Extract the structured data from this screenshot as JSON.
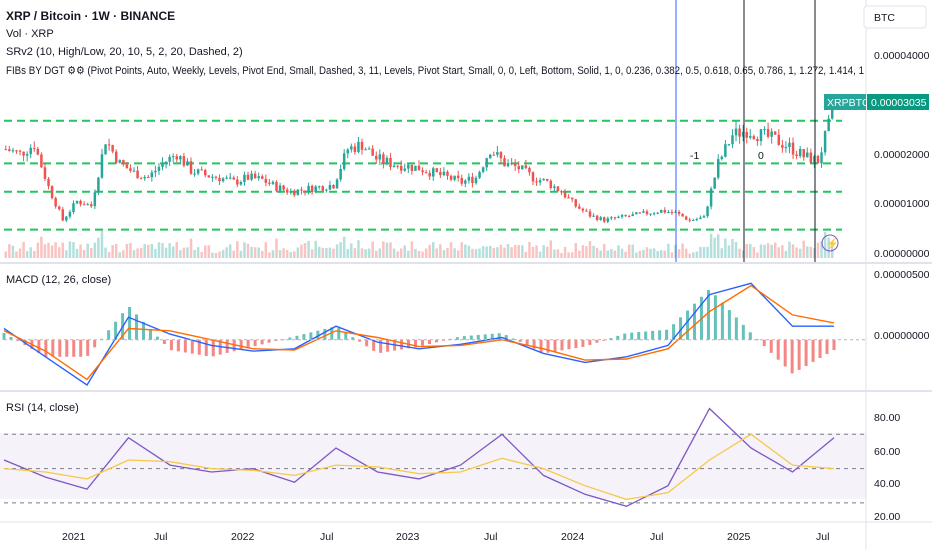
{
  "header": {
    "symbol_line": "XRP / Bitcoin · 1W · BINANCE",
    "indicators": [
      "Vol · XRP",
      "SRv2 (10, High/Low, 20, 10, 5, 2, 20, Dashed, 2)",
      "FIBs BY DGT ⚙⚙ (Pivot Points, Auto, Weekly, Levels, Pivot End, Small, Dashed, 3, 11, Levels, Pivot Start, Small, 0, 0, Left, Bottom, Solid, 1, 0, 0.236, 0.382, 0.5, 0.618, 0.65, 0.786, 1, 1.272, 1.414, 1"
    ],
    "currency_button": "BTC"
  },
  "price_axis": {
    "labels": [
      "0.00004000",
      "0.00002000",
      "0.00001000",
      "0.00000000"
    ],
    "symbol_tag": "XRPBTC",
    "current_price": "0.00003035"
  },
  "macd": {
    "title": "MACD (12, 26, close)",
    "axis_labels": [
      "0.00000500",
      "0.00000000"
    ]
  },
  "rsi": {
    "title": "RSI (14, close)",
    "axis_labels": [
      "80.00",
      "60.00",
      "40.00",
      "20.00"
    ]
  },
  "time_axis": {
    "labels": [
      "2021",
      "Jul",
      "2022",
      "Jul",
      "2023",
      "Jul",
      "2024",
      "Jul",
      "2025",
      "Jul"
    ]
  },
  "annotations": {
    "level_markers": [
      "-1",
      "0"
    ]
  },
  "colors": {
    "up": "#26a69a",
    "down": "#ef5350",
    "sr_level": "#22c55e",
    "macd_line": "#2962ff",
    "signal_line": "#ff6d00",
    "rsi_line": "#7e57c2",
    "rsi_ma": "#f7c948",
    "price_tag": "#089981",
    "symbol_tag": "#26a69a"
  },
  "chart_data": [
    {
      "type": "candlestick",
      "title": "XRP / Bitcoin · 1W · BINANCE",
      "ylim": [
        0,
        4.5e-05
      ],
      "x": [
        "2020-09",
        "2020-10",
        "2020-11",
        "2020-12",
        "2021-01",
        "2021-02",
        "2021-03",
        "2021-04",
        "2021-05",
        "2021-06",
        "2021-07",
        "2021-08",
        "2021-09",
        "2021-10",
        "2021-11",
        "2021-12",
        "2022-01",
        "2022-02",
        "2022-03",
        "2022-04",
        "2022-05",
        "2022-06",
        "2022-07",
        "2022-08",
        "2022-09",
        "2022-10",
        "2022-11",
        "2022-12",
        "2023-01",
        "2023-02",
        "2023-03",
        "2023-04",
        "2023-05",
        "2023-06",
        "2023-07",
        "2023-08",
        "2023-09",
        "2023-10",
        "2023-11",
        "2023-12",
        "2024-01",
        "2024-02",
        "2024-03",
        "2024-04",
        "2024-05",
        "2024-06",
        "2024-07",
        "2024-08",
        "2024-09",
        "2024-10",
        "2024-11",
        "2024-12",
        "2025-01",
        "2025-02",
        "2025-03",
        "2025-04",
        "2025-05",
        "2025-06",
        "2025-07"
      ],
      "close": [
        2.3e-05,
        2.2e-05,
        2.4e-05,
        1.5e-05,
        8e-06,
        1.2e-05,
        1.1e-05,
        2.5e-05,
        2e-05,
        1.8e-05,
        1.7e-05,
        2e-05,
        2.2e-05,
        1.85e-05,
        1.75e-05,
        1.7e-05,
        1.6e-05,
        1.7e-05,
        1.65e-05,
        1.5e-05,
        1.4e-05,
        1.45e-05,
        1.5e-05,
        1.55e-05,
        2.3e-05,
        2.4e-05,
        2.1e-05,
        2e-05,
        1.95e-05,
        1.9e-05,
        1.8e-05,
        1.7e-05,
        1.6e-05,
        1.7e-05,
        2.3e-05,
        2e-05,
        1.9e-05,
        1.7e-05,
        1.6e-05,
        1.4e-05,
        1.1e-05,
        9e-06,
        8e-06,
        8.5e-06,
        9e-06,
        9.5e-06,
        1e-05,
        9.5e-06,
        8e-06,
        8.5e-06,
        2e-05,
        2.6e-05,
        2.7e-05,
        2.6e-05,
        2.5e-05,
        2.35e-05,
        2.15e-05,
        2.05e-05,
        3.03e-05
      ],
      "levels": [
        2.9e-05,
        2e-05,
        1.4e-05,
        6e-06
      ],
      "volume_label": "Vol · XRP"
    },
    {
      "type": "line",
      "title": "MACD (12, 26, close)",
      "ylim": [
        -4e-06,
        6e-06
      ],
      "x": [
        "2020-09",
        "2020-12",
        "2021-03",
        "2021-06",
        "2021-09",
        "2021-12",
        "2022-03",
        "2022-06",
        "2022-09",
        "2022-12",
        "2023-03",
        "2023-06",
        "2023-09",
        "2023-12",
        "2024-03",
        "2024-06",
        "2024-09",
        "2024-12",
        "2025-03",
        "2025-06",
        "2025-07"
      ],
      "series": [
        {
          "name": "MACD",
          "values": [
            1e-06,
            -1.5e-06,
            -4e-06,
            2e-06,
            5e-07,
            -5e-07,
            -1e-06,
            -8e-07,
            1.2e-06,
            -2e-07,
            -8e-07,
            -4e-07,
            2e-07,
            -1.2e-06,
            -2e-06,
            -1.5e-06,
            -5e-07,
            4e-06,
            5e-06,
            1.2e-06,
            1.2e-06
          ]
        },
        {
          "name": "Signal",
          "values": [
            8e-07,
            -1e-06,
            -3.5e-06,
            1e-06,
            8e-07,
            0.0,
            -8e-07,
            -9e-07,
            8e-07,
            2e-07,
            -6e-07,
            -5e-07,
            0.0,
            -8e-07,
            -1.8e-06,
            -1.7e-06,
            -8e-07,
            2.5e-06,
            4.8e-06,
            2.2e-06,
            1.5e-06
          ]
        }
      ]
    },
    {
      "type": "line",
      "title": "RSI (14, close)",
      "ylim": [
        20,
        90
      ],
      "x": [
        "2020-09",
        "2020-12",
        "2021-03",
        "2021-06",
        "2021-09",
        "2021-12",
        "2022-03",
        "2022-06",
        "2022-09",
        "2022-12",
        "2023-03",
        "2023-06",
        "2023-09",
        "2023-12",
        "2024-03",
        "2024-06",
        "2024-09",
        "2024-12",
        "2025-03",
        "2025-06",
        "2025-07"
      ],
      "series": [
        {
          "name": "RSI",
          "values": [
            55,
            45,
            38,
            68,
            52,
            48,
            50,
            42,
            62,
            48,
            44,
            52,
            70,
            46,
            35,
            28,
            40,
            85,
            62,
            48,
            68
          ]
        },
        {
          "name": "RSI MA",
          "values": [
            50,
            48,
            44,
            55,
            54,
            50,
            49,
            46,
            52,
            51,
            47,
            48,
            56,
            50,
            40,
            32,
            36,
            55,
            70,
            52,
            50
          ]
        }
      ]
    }
  ]
}
